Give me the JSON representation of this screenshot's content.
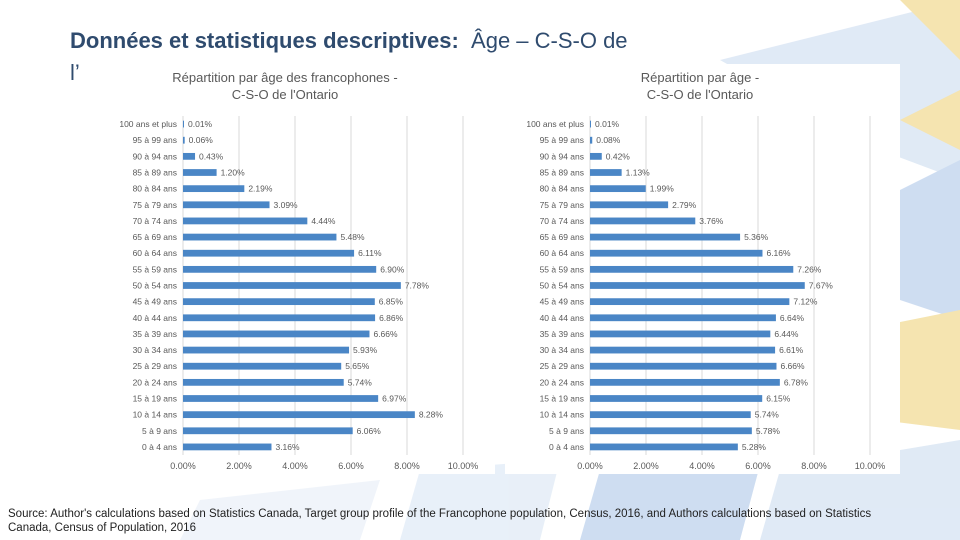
{
  "slide": {
    "title_bold": "Données et statistiques descriptives:",
    "title_rest": "Âge – C-S-O de",
    "title_wrap": "l’",
    "source": "Source: Author's calculations based on Statistics Canada, Target group profile of the Francophone population, Census, 2016, and Authors calculations based on Statistics Canada, Census of Population, 2016"
  },
  "colors": {
    "bar": "#4a86c6",
    "title": "#2f4b6e",
    "grid": "#d9d9d9",
    "deco1": "#c9daf0",
    "deco2": "#f4e2a8"
  },
  "chart_data": [
    {
      "type": "bar",
      "orientation": "horizontal",
      "title_line1": "Répartition par âge des francophones -",
      "title_line2": "C-S-O de l'Ontario",
      "categories": [
        "100 ans et plus",
        "95 à 99 ans",
        "90 à 94 ans",
        "85 à 89 ans",
        "80 à 84 ans",
        "75 à 79 ans",
        "70 à 74 ans",
        "65 à 69 ans",
        "60 à 64 ans",
        "55 à 59 ans",
        "50 à 54 ans",
        "45 à 49 ans",
        "40 à 44 ans",
        "35 à 39 ans",
        "30 à 34 ans",
        "25 à 29 ans",
        "20 à 24 ans",
        "15 à 19 ans",
        "10 à 14 ans",
        "5 à 9 ans",
        "0 à 4 ans"
      ],
      "values": [
        0.01,
        0.06,
        0.43,
        1.2,
        2.19,
        3.09,
        4.44,
        5.48,
        6.11,
        6.9,
        7.78,
        6.85,
        6.86,
        6.66,
        5.93,
        5.65,
        5.74,
        6.97,
        8.28,
        6.06,
        3.16
      ],
      "labels": [
        "0.01%",
        "0.06%",
        "0.43%",
        "1.20%",
        "2.19%",
        "3.09%",
        "4.44%",
        "5.48%",
        "6.11%",
        "6.90%",
        "7.78%",
        "6.85%",
        "6.86%",
        "6.66%",
        "5.93%",
        "5.65%",
        "5.74%",
        "6.97%",
        "8.28%",
        "6.06%",
        "3.16%"
      ],
      "xlim": [
        0,
        10
      ],
      "xticks": [
        "0.00%",
        "2.00%",
        "4.00%",
        "6.00%",
        "8.00%",
        "10.00%"
      ],
      "grid": true
    },
    {
      "type": "bar",
      "orientation": "horizontal",
      "title_line1": "Répartition par âge -",
      "title_line2": "C-S-O  de l'Ontario",
      "categories": [
        "100 ans et plus",
        "95 à 99 ans",
        "90 à 94 ans",
        "85 à 89 ans",
        "80 à 84 ans",
        "75 à 79 ans",
        "70 à 74 ans",
        "65 à 69 ans",
        "60 à 64 ans",
        "55 à 59 ans",
        "50 à 54 ans",
        "45 à 49 ans",
        "40 à 44 ans",
        "35 à 39 ans",
        "30 à 34 ans",
        "25 à 29 ans",
        "20 à 24 ans",
        "15 à 19 ans",
        "10 à 14 ans",
        "5 à 9 ans",
        "0 à 4 ans"
      ],
      "values": [
        0.01,
        0.08,
        0.42,
        1.13,
        1.99,
        2.79,
        3.76,
        5.36,
        6.16,
        7.26,
        7.67,
        7.12,
        6.64,
        6.44,
        6.61,
        6.66,
        6.78,
        6.15,
        5.74,
        5.78,
        5.28
      ],
      "labels": [
        "0.01%",
        "0.08%",
        "0.42%",
        "1.13%",
        "1.99%",
        "2.79%",
        "3.76%",
        "5.36%",
        "6.16%",
        "7.26%",
        "7.67%",
        "7.12%",
        "6.64%",
        "6.44%",
        "6.61%",
        "6.66%",
        "6.78%",
        "6.15%",
        "5.74%",
        "5.78%",
        "5.28%"
      ],
      "xlim": [
        0,
        10
      ],
      "xticks": [
        "0.00%",
        "2.00%",
        "4.00%",
        "6.00%",
        "8.00%",
        "10.00%"
      ],
      "grid": true
    }
  ]
}
